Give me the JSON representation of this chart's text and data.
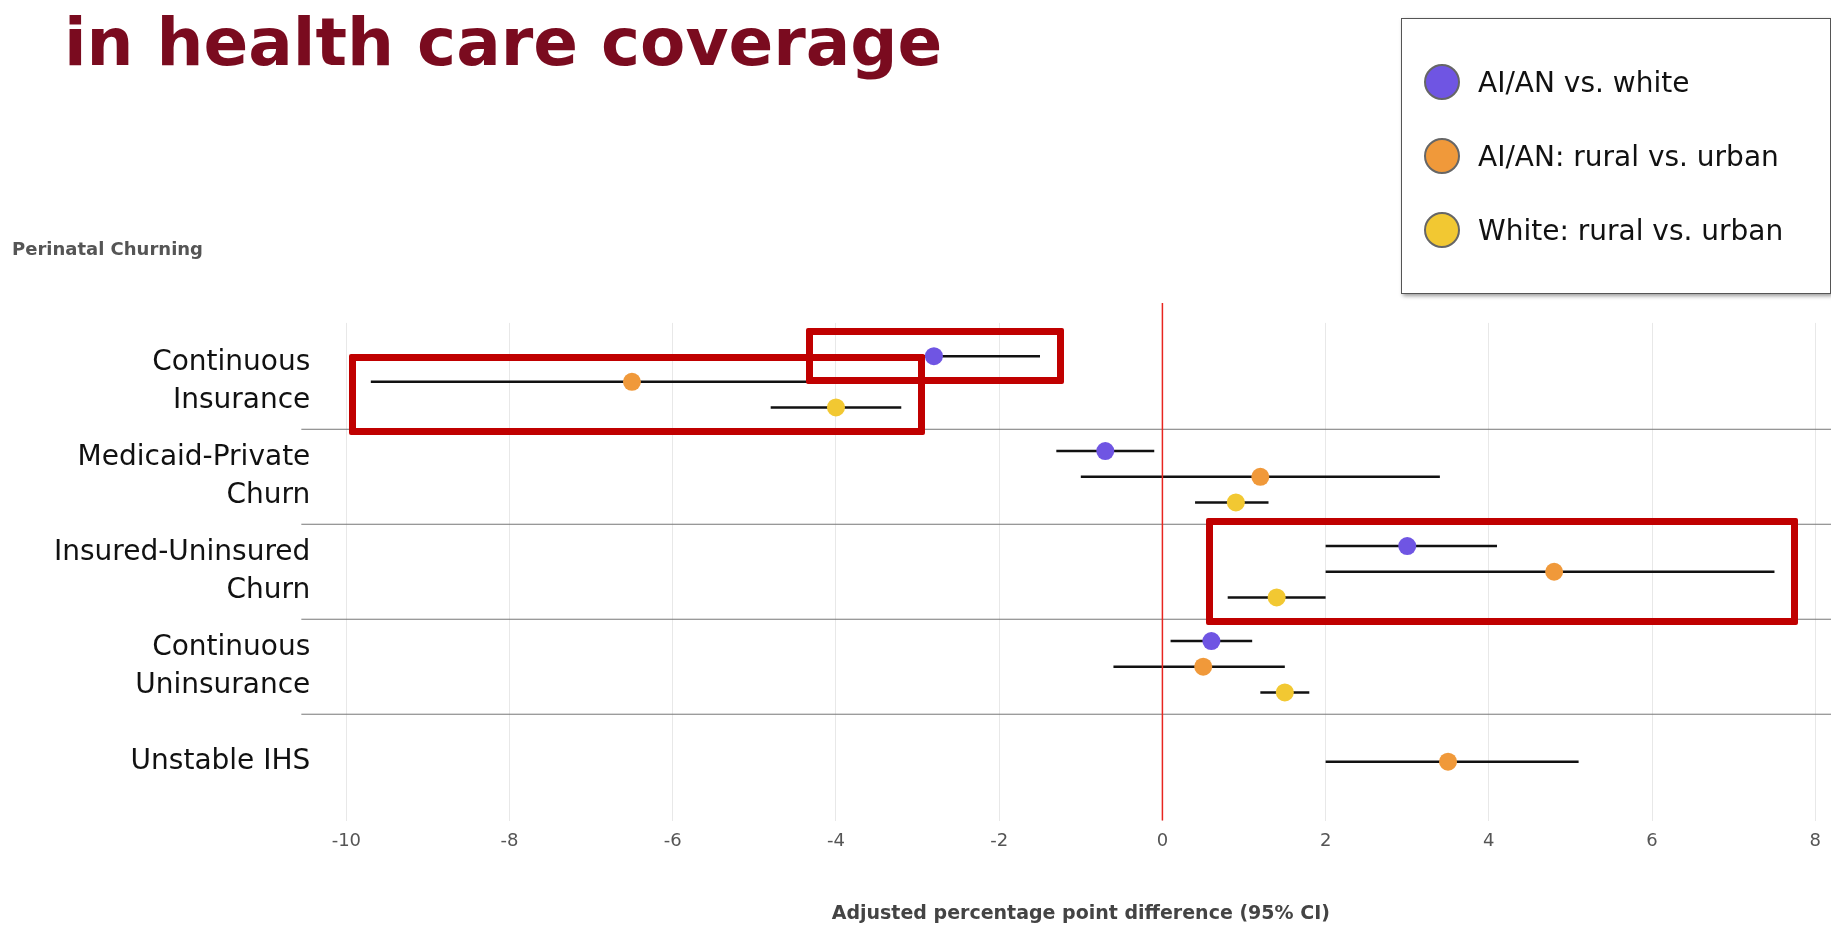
{
  "chart_data": {
    "type": "scatter",
    "title": "in health care coverage",
    "subtitle": "Perinatal Churning",
    "xlabel": "Adjusted percentage point difference (95% CI)",
    "orientation": "horizontal",
    "categories": [
      "Continuous Insurance",
      "Medicaid-Private Churn",
      "Insured-Uninsured Churn",
      "Continuous Uninsurance",
      "Unstable IHS"
    ],
    "series": [
      {
        "name": "AI/AN vs. white",
        "color": "#6f55e3",
        "values": [
          -2.8,
          -0.7,
          3.0,
          0.6,
          null
        ],
        "errors": [
          [
            -4.1,
            -1.5
          ],
          [
            -1.3,
            -0.1
          ],
          [
            2.0,
            4.1
          ],
          [
            0.1,
            1.1
          ],
          null
        ]
      },
      {
        "name": "AI/AN: rural vs. urban",
        "color": "#f0993a",
        "values": [
          -6.5,
          1.2,
          4.8,
          0.5,
          3.5
        ],
        "errors": [
          [
            -9.7,
            -3.3
          ],
          [
            -1.0,
            3.4
          ],
          [
            2.0,
            7.5
          ],
          [
            -0.6,
            1.5
          ],
          [
            2.0,
            5.1
          ]
        ]
      },
      {
        "name": "White: rural vs. urban",
        "color": "#f2c832",
        "values": [
          -4.0,
          0.9,
          1.4,
          1.5,
          null
        ],
        "errors": [
          [
            -4.8,
            -3.2
          ],
          [
            0.4,
            1.3
          ],
          [
            0.8,
            2.0
          ],
          [
            1.2,
            1.8
          ],
          null
        ]
      }
    ],
    "xlim": [
      -10,
      8
    ],
    "xticks": [
      -10,
      -8,
      -6,
      -4,
      -2,
      0,
      2,
      4,
      6,
      8
    ],
    "ref_lines": [
      {
        "axis": "x",
        "value": 0,
        "color": "#e8251f"
      }
    ],
    "grid": "x",
    "legend": "top right",
    "marker": "circle"
  }
}
